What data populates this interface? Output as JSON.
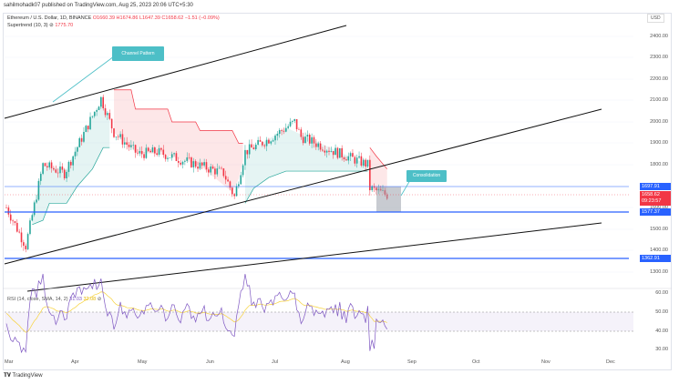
{
  "publisher": "sahilmohadk07 published on TradingView.com, Aug 25, 2023 20:06 UTC+5:30",
  "symbol": {
    "name": "Ethereum / U.S. Dollar, 1D, BINANCE",
    "open": "O1660.39",
    "high": "H1674.86",
    "low": "L1647.39",
    "close": "C1658.62",
    "change": "−1.51 (−0.09%)"
  },
  "supertrend": {
    "label": "Supertrend (10, 3)",
    "value": "1775.70"
  },
  "currency": "USD",
  "price_axis": [
    "2400.00",
    "2300.00",
    "2200.00",
    "2100.00",
    "2000.00",
    "1900.00",
    "1800.00",
    "1600.00",
    "1500.00",
    "1400.00",
    "1300.00"
  ],
  "price_tags": {
    "resistance": "1697.91",
    "last": "1658.62",
    "countdown": "09:23:57",
    "support": "1577.37",
    "support2": "1362.91"
  },
  "rsi": {
    "label": "RSI (14, close, SMA, 14, 2)",
    "value": "31.03",
    "sma": "32.08",
    "axis": [
      "60.00",
      "50.00",
      "40.00",
      "30.00"
    ]
  },
  "time_axis": [
    "Mar",
    "Apr",
    "May",
    "Jun",
    "Jul",
    "Aug",
    "Sep",
    "Oct",
    "Nov",
    "Dec"
  ],
  "annotations": {
    "channel": "Channel Pattern",
    "consolidation": "Consolidation"
  },
  "logo": "TradingView",
  "colors": {
    "up": "#26a69a",
    "down": "#f23645",
    "level": "#2962ff",
    "rsi": "#7e57c2",
    "rsi_sma": "#f7d23a",
    "callout": "#4dbfc7"
  }
}
